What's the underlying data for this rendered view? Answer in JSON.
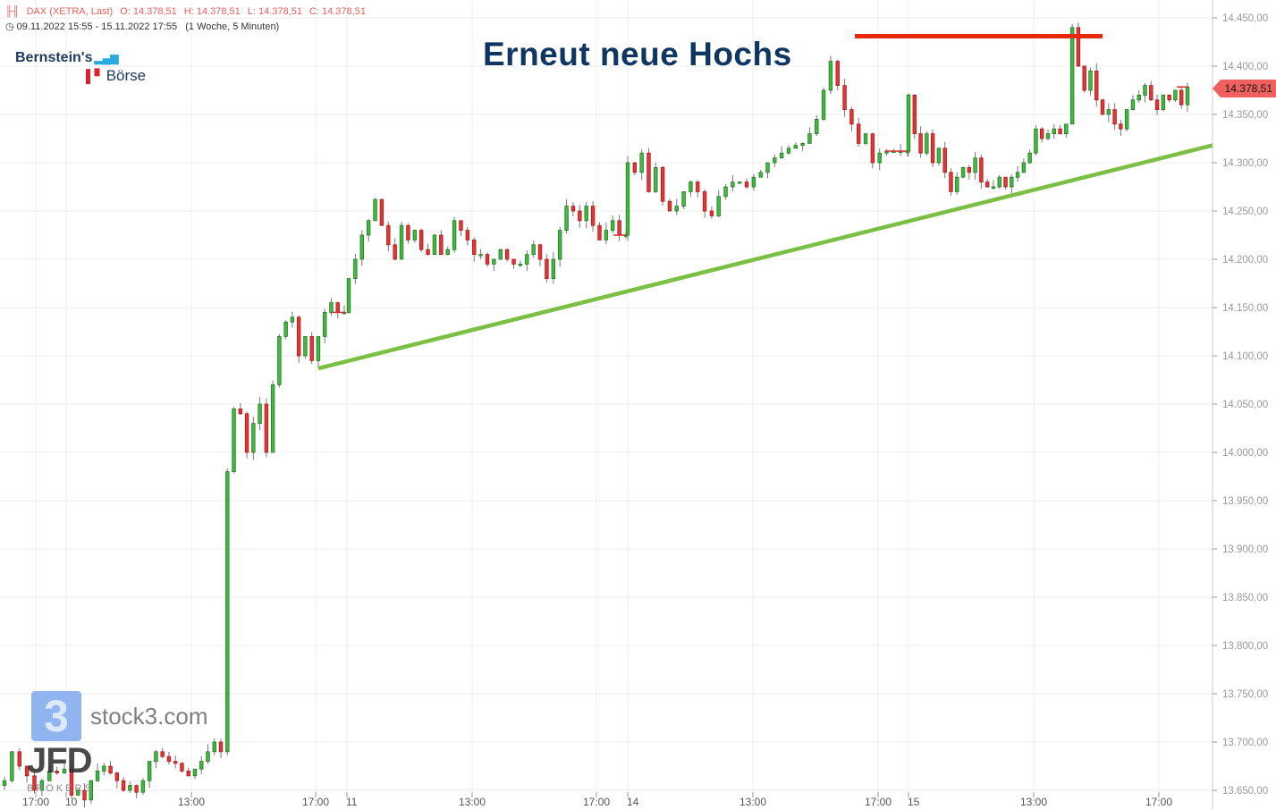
{
  "header": {
    "instrument": "DAX (XETRA, Last)",
    "open": "O: 14.378,51",
    "high": "H: 14.378,51",
    "low": "L: 14.378,51",
    "close": "C: 14.378,51",
    "range": "09.11.2022 15:55 - 15.11.2022 17:55",
    "interval": "(1 Woche, 5 Minuten)",
    "icons": [
      "candlestick-icon",
      "clock-icon"
    ]
  },
  "logos": {
    "bernstein_line1": "Bernstein's",
    "bernstein_line2": "Börse",
    "stock3_mark": "3",
    "stock3": "stock3.com",
    "jfd": "JFD",
    "jfd_sub": "BROKERS"
  },
  "last_price_label": "14.378,51",
  "colors": {
    "up": "#33a532",
    "down": "#d62b2b",
    "trendline": "#7bbf44",
    "resistance": "#e8280c",
    "title": "#0f3561",
    "last_price": "#f06060"
  },
  "chart_data": {
    "type": "candlestick",
    "title": "Erneut neue Hochs",
    "xlabel": "",
    "ylabel": "",
    "ylim": [
      13640,
      14470
    ],
    "grid": true,
    "y_ticks": [
      "13.650,00",
      "13.700,00",
      "13.750,00",
      "13.800,00",
      "13.850,00",
      "13.900,00",
      "13.950,00",
      "14.000,00",
      "14.050,00",
      "14.100,00",
      "14.150,00",
      "14.200,00",
      "14.250,00",
      "14.300,00",
      "14.350,00",
      "14.400,00",
      "14.450,00"
    ],
    "y_tick_values": [
      13650,
      13700,
      13750,
      13800,
      13850,
      13900,
      13950,
      14000,
      14050,
      14100,
      14150,
      14200,
      14250,
      14300,
      14350,
      14400,
      14450
    ],
    "x_ticks": [
      "17:00",
      "10",
      "13:00",
      "17:00",
      "11",
      "13:00",
      "17:00",
      "14",
      "13:00",
      "17:00",
      "15",
      "13:00",
      "17:00"
    ],
    "sessions": [
      {
        "date": "09.11.2022",
        "closes": [
          13660,
          13690,
          13675,
          13665,
          13650,
          13660,
          13670,
          13668,
          13672
        ]
      },
      {
        "date": "10.11.2022",
        "closes": [
          13645,
          13650,
          13640,
          13660,
          13670,
          13675,
          13668,
          13660,
          13650,
          13655,
          13648,
          13660,
          13680,
          13690,
          13685,
          13680,
          13678,
          13670,
          13665,
          13672,
          13680,
          13690,
          13700,
          13690,
          13980,
          14045,
          14040,
          14000,
          14030,
          14050,
          14000,
          14070,
          14120,
          14135,
          14140,
          14100,
          14120,
          14095,
          14120,
          14145,
          14155,
          14145,
          14145
        ]
      },
      {
        "date": "11.11.2022",
        "closes": [
          14180,
          14200,
          14225,
          14240,
          14262,
          14235,
          14215,
          14200,
          14235,
          14220,
          14230,
          14210,
          14205,
          14225,
          14205,
          14210,
          14240,
          14230,
          14220,
          14205,
          14205,
          14195,
          14200,
          14210,
          14200,
          14195,
          14195,
          14205,
          14215,
          14200,
          14180,
          14200,
          14230,
          14255,
          14250,
          14240,
          14255,
          14235,
          14220,
          14230,
          14240,
          14225,
          14225
        ]
      },
      {
        "date": "14.11.2022",
        "closes": [
          14300,
          14290,
          14310,
          14270,
          14295,
          14260,
          14250,
          14255,
          14270,
          14280,
          14270,
          14250,
          14245,
          14265,
          14275,
          14280,
          14280,
          14275,
          14285,
          14290,
          14300,
          14305,
          14310,
          14315,
          14318,
          14320,
          14330,
          14345,
          14375,
          14405,
          14380,
          14355,
          14340,
          14320,
          14330,
          14300,
          14310,
          14312,
          14312,
          14312,
          14312
        ]
      },
      {
        "date": "15.11.2022",
        "closes": [
          14370,
          14330,
          14310,
          14330,
          14300,
          14315,
          14290,
          14270,
          14285,
          14295,
          14290,
          14305,
          14280,
          14275,
          14275,
          14285,
          14275,
          14285,
          14290,
          14300,
          14310,
          14335,
          14325,
          14330,
          14335,
          14330,
          14340,
          14440,
          14400,
          14375,
          14395,
          14365,
          14350,
          14355,
          14340,
          14335,
          14355,
          14365,
          14370,
          14380,
          14365,
          14355,
          14370,
          14365,
          14375,
          14360,
          14378.51
        ]
      }
    ],
    "annotations": {
      "trendline": {
        "start_price": 14087,
        "end_price": 14318
      },
      "resistance": {
        "price": 14431
      }
    }
  }
}
